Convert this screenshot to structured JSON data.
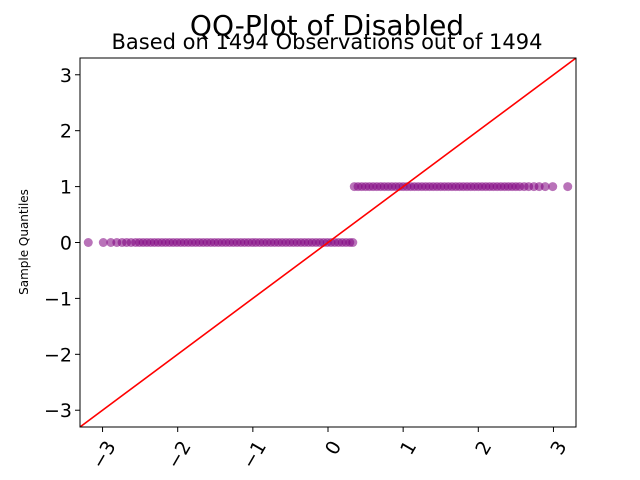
{
  "chart_data": {
    "type": "scatter",
    "title": "QQ-Plot of Disabled",
    "subtitle": "Based on 1494 Observations out of 1494",
    "xlabel": "",
    "ylabel": "Sample Quantiles",
    "xlim": [
      -3.3,
      3.3
    ],
    "ylim": [
      -3.3,
      3.3
    ],
    "xticks": [
      -3,
      -2,
      -1,
      0,
      1,
      2,
      3
    ],
    "xtick_labels": [
      "−3",
      "−2",
      "−1",
      "0",
      "1",
      "2",
      "3"
    ],
    "yticks": [
      -3,
      -2,
      -1,
      0,
      1,
      2,
      3
    ],
    "ytick_labels": [
      "−3",
      "−2",
      "−1",
      "0",
      "1",
      "2",
      "3"
    ],
    "grid": false,
    "point_color": "#800080",
    "line_color": "#ff0000",
    "reference_line": {
      "slope": 1,
      "intercept": 0
    },
    "series": [
      {
        "x": [
          -3.19,
          -2.99,
          -2.89,
          -2.81,
          -2.74,
          -2.68,
          -2.62,
          -2.56,
          -2.51,
          -2.46,
          -2.41,
          -2.36,
          -2.31,
          -2.26,
          -2.21,
          -2.16,
          -2.11,
          -2.06,
          -2.01,
          -1.96,
          -1.91,
          -1.86,
          -1.81,
          -1.76,
          -1.71,
          -1.66,
          -1.61,
          -1.56,
          -1.51,
          -1.46,
          -1.41,
          -1.36,
          -1.31,
          -1.26,
          -1.21,
          -1.16,
          -1.11,
          -1.06,
          -1.01,
          -0.96,
          -0.91,
          -0.86,
          -0.81,
          -0.76,
          -0.71,
          -0.66,
          -0.61,
          -0.56,
          -0.51,
          -0.46,
          -0.41,
          -0.36,
          -0.31,
          -0.26,
          -0.21,
          -0.16,
          -0.11,
          -0.06,
          -0.01,
          0.04,
          0.09,
          0.14,
          0.19,
          0.24,
          0.29,
          0.33
        ],
        "y": [
          0,
          0,
          0,
          0,
          0,
          0,
          0,
          0,
          0,
          0,
          0,
          0,
          0,
          0,
          0,
          0,
          0,
          0,
          0,
          0,
          0,
          0,
          0,
          0,
          0,
          0,
          0,
          0,
          0,
          0,
          0,
          0,
          0,
          0,
          0,
          0,
          0,
          0,
          0,
          0,
          0,
          0,
          0,
          0,
          0,
          0,
          0,
          0,
          0,
          0,
          0,
          0,
          0,
          0,
          0,
          0,
          0,
          0,
          0,
          0,
          0,
          0,
          0,
          0,
          0,
          0
        ]
      },
      {
        "x": [
          0.35,
          0.4,
          0.45,
          0.5,
          0.55,
          0.6,
          0.65,
          0.7,
          0.75,
          0.8,
          0.85,
          0.9,
          0.95,
          1.0,
          1.05,
          1.1,
          1.15,
          1.2,
          1.25,
          1.3,
          1.35,
          1.4,
          1.45,
          1.5,
          1.55,
          1.6,
          1.65,
          1.7,
          1.75,
          1.8,
          1.85,
          1.9,
          1.95,
          2.0,
          2.05,
          2.1,
          2.15,
          2.2,
          2.25,
          2.3,
          2.35,
          2.4,
          2.45,
          2.5,
          2.55,
          2.61,
          2.67,
          2.74,
          2.81,
          2.89,
          2.99,
          3.19
        ],
        "y": [
          1,
          1,
          1,
          1,
          1,
          1,
          1,
          1,
          1,
          1,
          1,
          1,
          1,
          1,
          1,
          1,
          1,
          1,
          1,
          1,
          1,
          1,
          1,
          1,
          1,
          1,
          1,
          1,
          1,
          1,
          1,
          1,
          1,
          1,
          1,
          1,
          1,
          1,
          1,
          1,
          1,
          1,
          1,
          1,
          1,
          1,
          1,
          1,
          1,
          1,
          1,
          1
        ]
      }
    ]
  }
}
